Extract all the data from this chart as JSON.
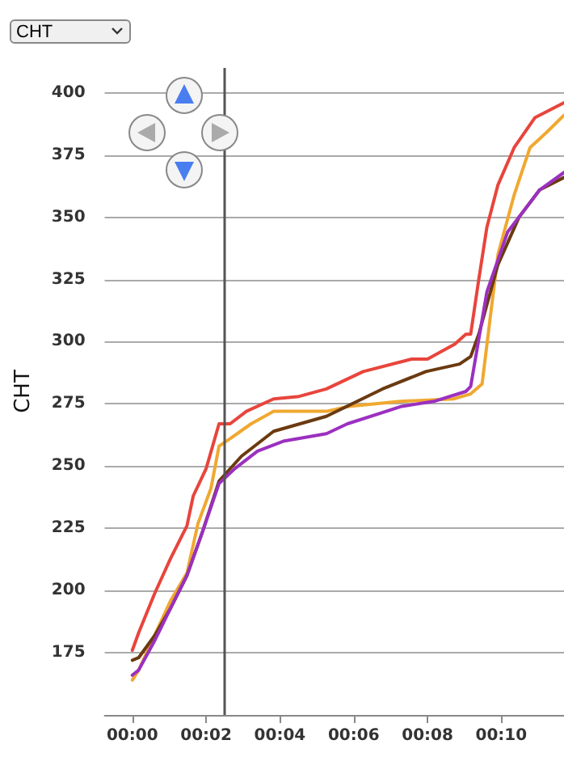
{
  "chart_data": {
    "type": "line",
    "ylabel": "CHT",
    "annotations": [
      "CHT"
    ],
    "xlim": [
      -0.75,
      11.7
    ],
    "ylim": [
      150,
      410
    ],
    "xticks": [
      {
        "value": 0,
        "label": "00:00"
      },
      {
        "value": 2,
        "label": "00:02"
      },
      {
        "value": 4,
        "label": "00:04"
      },
      {
        "value": 6,
        "label": "00:06"
      },
      {
        "value": 8,
        "label": "00:08"
      },
      {
        "value": 10,
        "label": "00:10"
      }
    ],
    "yticks": [
      175,
      200,
      225,
      250,
      275,
      300,
      325,
      350,
      375,
      400
    ],
    "grid": "y",
    "marker": "none",
    "line_style": "solid",
    "ref_lines": [
      {
        "axis": "x",
        "value": 2.48,
        "color": "#555555"
      }
    ],
    "series": [
      {
        "color": "#e8453c",
        "x": [
          0,
          0.17,
          0.61,
          1.04,
          1.48,
          1.65,
          2.0,
          2.35,
          2.65,
          3.09,
          3.83,
          4.52,
          5.26,
          6.26,
          7.57,
          8.0,
          8.74,
          9.04,
          9.17,
          9.39,
          9.61,
          9.91,
          10.35,
          10.91,
          11.7
        ],
        "values": [
          176,
          183,
          199,
          213,
          226,
          238,
          249,
          267,
          267,
          272,
          277,
          278,
          281,
          288,
          293,
          293,
          299,
          303,
          303,
          325,
          346,
          363,
          378,
          390,
          396
        ]
      },
      {
        "color": "#f0a830",
        "x": [
          0,
          0.17,
          1.04,
          1.48,
          1.78,
          2.13,
          2.35,
          2.65,
          3.22,
          3.83,
          5.26,
          5.87,
          7.26,
          8.7,
          9.17,
          9.48,
          9.91,
          10.35,
          10.78,
          11.22,
          11.7
        ],
        "values": [
          164,
          168,
          196,
          207,
          227,
          241,
          258,
          261,
          267,
          272,
          272,
          274,
          276,
          277,
          279,
          283,
          335,
          359,
          378,
          384,
          391
        ]
      },
      {
        "color": "#6b3a10",
        "x": [
          0,
          0.17,
          0.61,
          1.04,
          1.48,
          1.91,
          2.35,
          2.96,
          3.83,
          5.26,
          6.78,
          7.96,
          8.87,
          9.17,
          9.39,
          9.91,
          10.48,
          11.04,
          11.7
        ],
        "values": [
          172,
          173,
          182,
          193,
          206,
          224,
          244,
          254,
          264,
          270,
          281,
          288,
          291,
          294,
          303,
          331,
          350,
          361,
          366
        ]
      },
      {
        "color": "#9b30c0",
        "x": [
          0,
          0.17,
          0.61,
          1.04,
          1.48,
          1.91,
          2.35,
          2.78,
          3.39,
          4.09,
          5.26,
          5.83,
          7.3,
          8.17,
          9.04,
          9.17,
          9.61,
          10.17,
          11.04,
          11.7
        ],
        "values": [
          166,
          168,
          180,
          193,
          206,
          224,
          243,
          249,
          256,
          260,
          263,
          267,
          274,
          276,
          280,
          282,
          320,
          344,
          361,
          368
        ]
      }
    ]
  }
}
